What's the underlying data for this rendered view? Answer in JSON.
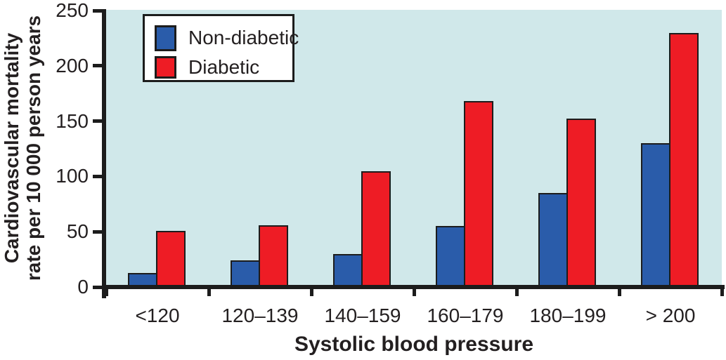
{
  "chart_data": {
    "type": "bar",
    "title": "",
    "xlabel": "Systolic blood pressure",
    "ylabel": "Cardiovascular mortality rate per 10 000 person years",
    "ylabel_line1": "Cardiovascular  mortality",
    "ylabel_line2": "rate per 10 000 person years",
    "categories": [
      "<120",
      "120–139",
      "140–159",
      "160–179",
      "180–199",
      "> 200"
    ],
    "series": [
      {
        "name": "Non-diabetic",
        "color": "#2a5caa",
        "values": [
          13,
          24,
          30,
          55,
          85,
          130
        ]
      },
      {
        "name": "Diabetic",
        "color": "#ee1c25",
        "values": [
          51,
          56,
          105,
          168,
          152,
          230
        ]
      }
    ],
    "ylim": [
      0,
      250
    ],
    "yticks": [
      0,
      50,
      100,
      150,
      200,
      250
    ],
    "legend_position": "top-left",
    "grid": false,
    "colors": {
      "plot_background": "#d0e8ea",
      "axis": "#1c1c1c",
      "legend_background": "#ffffff",
      "text": "#231f20"
    }
  }
}
